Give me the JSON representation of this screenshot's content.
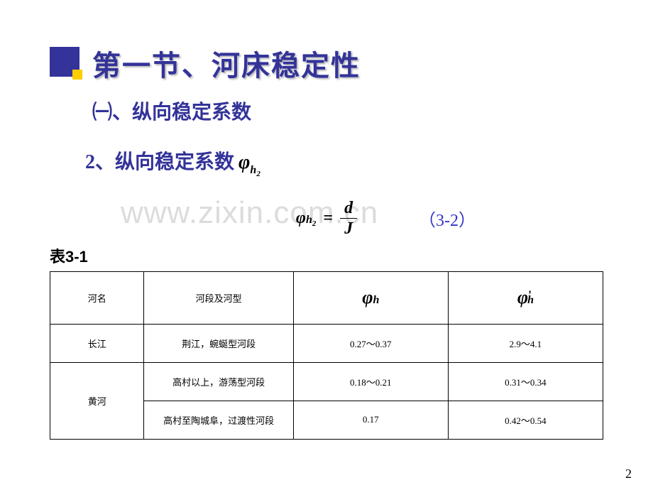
{
  "title": "第一节、河床稳定性",
  "subtitle": "㈠、纵向稳定系数",
  "formula_label": "2、纵向稳定系数",
  "formula_symbol": {
    "phi": "φ",
    "sub": "h",
    "subsub": "2"
  },
  "watermark": "www.zixin.com.cn",
  "equation": {
    "lhs_phi": "φ",
    "lhs_sub": "h",
    "lhs_subsub": "2",
    "eq": "=",
    "num": "d",
    "den": "J",
    "number": "（3-2）"
  },
  "table_label": "表3-1",
  "table": {
    "columns": [
      {
        "label": "河名",
        "type": "text"
      },
      {
        "label": "河段及河型",
        "type": "text"
      },
      {
        "label_phi": "φ",
        "label_sub": "h",
        "type": "phi"
      },
      {
        "label_phi": "φ",
        "label_sub": "h",
        "label_prime": "'",
        "type": "phi_prime"
      }
    ],
    "rows": [
      {
        "river": "长江",
        "segment": "荆江，蜿蜒型河段",
        "c3": "0.27～0.37",
        "c4": "2.9～4.1",
        "rowspan": 1
      },
      {
        "river": "黄河",
        "segment": "高村以上，游荡型河段",
        "c3": "0.18～0.21",
        "c4": "0.31～0.34",
        "rowspan": 2
      },
      {
        "river": "",
        "segment": "高村至陶城阜，过渡性河段",
        "c3": "0.17",
        "c4": "0.42～0.54",
        "rowspan": 0
      }
    ],
    "col_widths": [
      "17%",
      "27%",
      "28%",
      "28%"
    ],
    "border_color": "#000000",
    "font_size": 13
  },
  "page_number": "2",
  "colors": {
    "title": "#333399",
    "marker_main": "#333399",
    "marker_accent": "#ffcc00",
    "watermark": "#dcdcdc",
    "eq_number": "#3333cc",
    "background": "#ffffff"
  }
}
